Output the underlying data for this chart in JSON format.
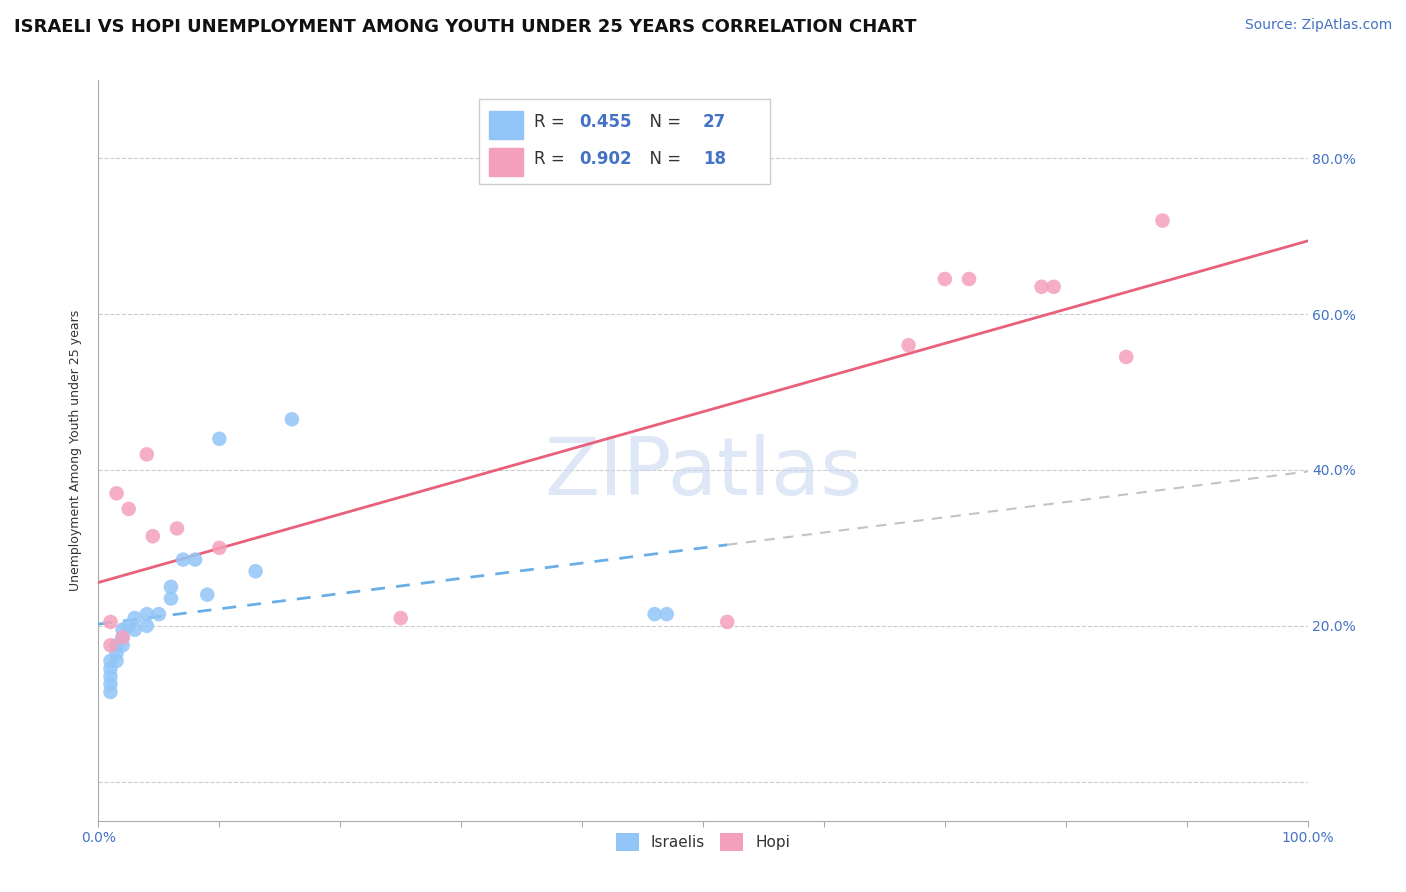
{
  "title": "ISRAELI VS HOPI UNEMPLOYMENT AMONG YOUTH UNDER 25 YEARS CORRELATION CHART",
  "source_text": "Source: ZipAtlas.com",
  "ylabel": "Unemployment Among Youth under 25 years",
  "watermark": "ZIPatlas",
  "xlim": [
    0.0,
    1.0
  ],
  "ylim": [
    -0.05,
    0.9
  ],
  "x_ticks": [
    0.0,
    0.1,
    0.2,
    0.3,
    0.4,
    0.5,
    0.6,
    0.7,
    0.8,
    0.9,
    1.0
  ],
  "y_ticks": [
    0.0,
    0.2,
    0.4,
    0.6,
    0.8
  ],
  "y_tick_labels": [
    "",
    "20.0%",
    "40.0%",
    "60.0%",
    "80.0%"
  ],
  "israeli_color": "#92c5f7",
  "hopi_color": "#f4a0bc",
  "israeli_line_color": "#6aaee8",
  "hopi_line_color": "#e8607a",
  "isr_line_x_start": 0.0,
  "isr_line_x_end": 0.52,
  "grid_color": "#cccccc",
  "background_color": "#ffffff",
  "title_fontsize": 13,
  "axis_label_fontsize": 9,
  "tick_fontsize": 10,
  "legend_fontsize": 12,
  "source_fontsize": 10,
  "israeli_points_x": [
    0.01,
    0.01,
    0.01,
    0.01,
    0.01,
    0.015,
    0.015,
    0.015,
    0.02,
    0.02,
    0.02,
    0.025,
    0.03,
    0.03,
    0.04,
    0.04,
    0.05,
    0.06,
    0.06,
    0.07,
    0.08,
    0.09,
    0.1,
    0.13,
    0.16,
    0.46,
    0.47
  ],
  "israeli_points_y": [
    0.155,
    0.145,
    0.135,
    0.125,
    0.115,
    0.175,
    0.165,
    0.155,
    0.195,
    0.185,
    0.175,
    0.2,
    0.21,
    0.195,
    0.215,
    0.2,
    0.215,
    0.25,
    0.235,
    0.285,
    0.285,
    0.24,
    0.44,
    0.27,
    0.465,
    0.215,
    0.215
  ],
  "hopi_points_x": [
    0.01,
    0.01,
    0.015,
    0.02,
    0.025,
    0.04,
    0.045,
    0.065,
    0.1,
    0.25,
    0.52,
    0.67,
    0.7,
    0.72,
    0.78,
    0.79,
    0.85,
    0.88
  ],
  "hopi_points_y": [
    0.175,
    0.205,
    0.37,
    0.185,
    0.35,
    0.42,
    0.315,
    0.325,
    0.3,
    0.21,
    0.205,
    0.56,
    0.645,
    0.645,
    0.635,
    0.635,
    0.545,
    0.72
  ],
  "isr_trend_x": [
    0.0,
    0.52
  ],
  "isr_trend_y_start": 0.165,
  "isr_trend_y_end": 0.355,
  "hopi_trend_y_start": 0.155,
  "hopi_trend_y_end": 0.695
}
